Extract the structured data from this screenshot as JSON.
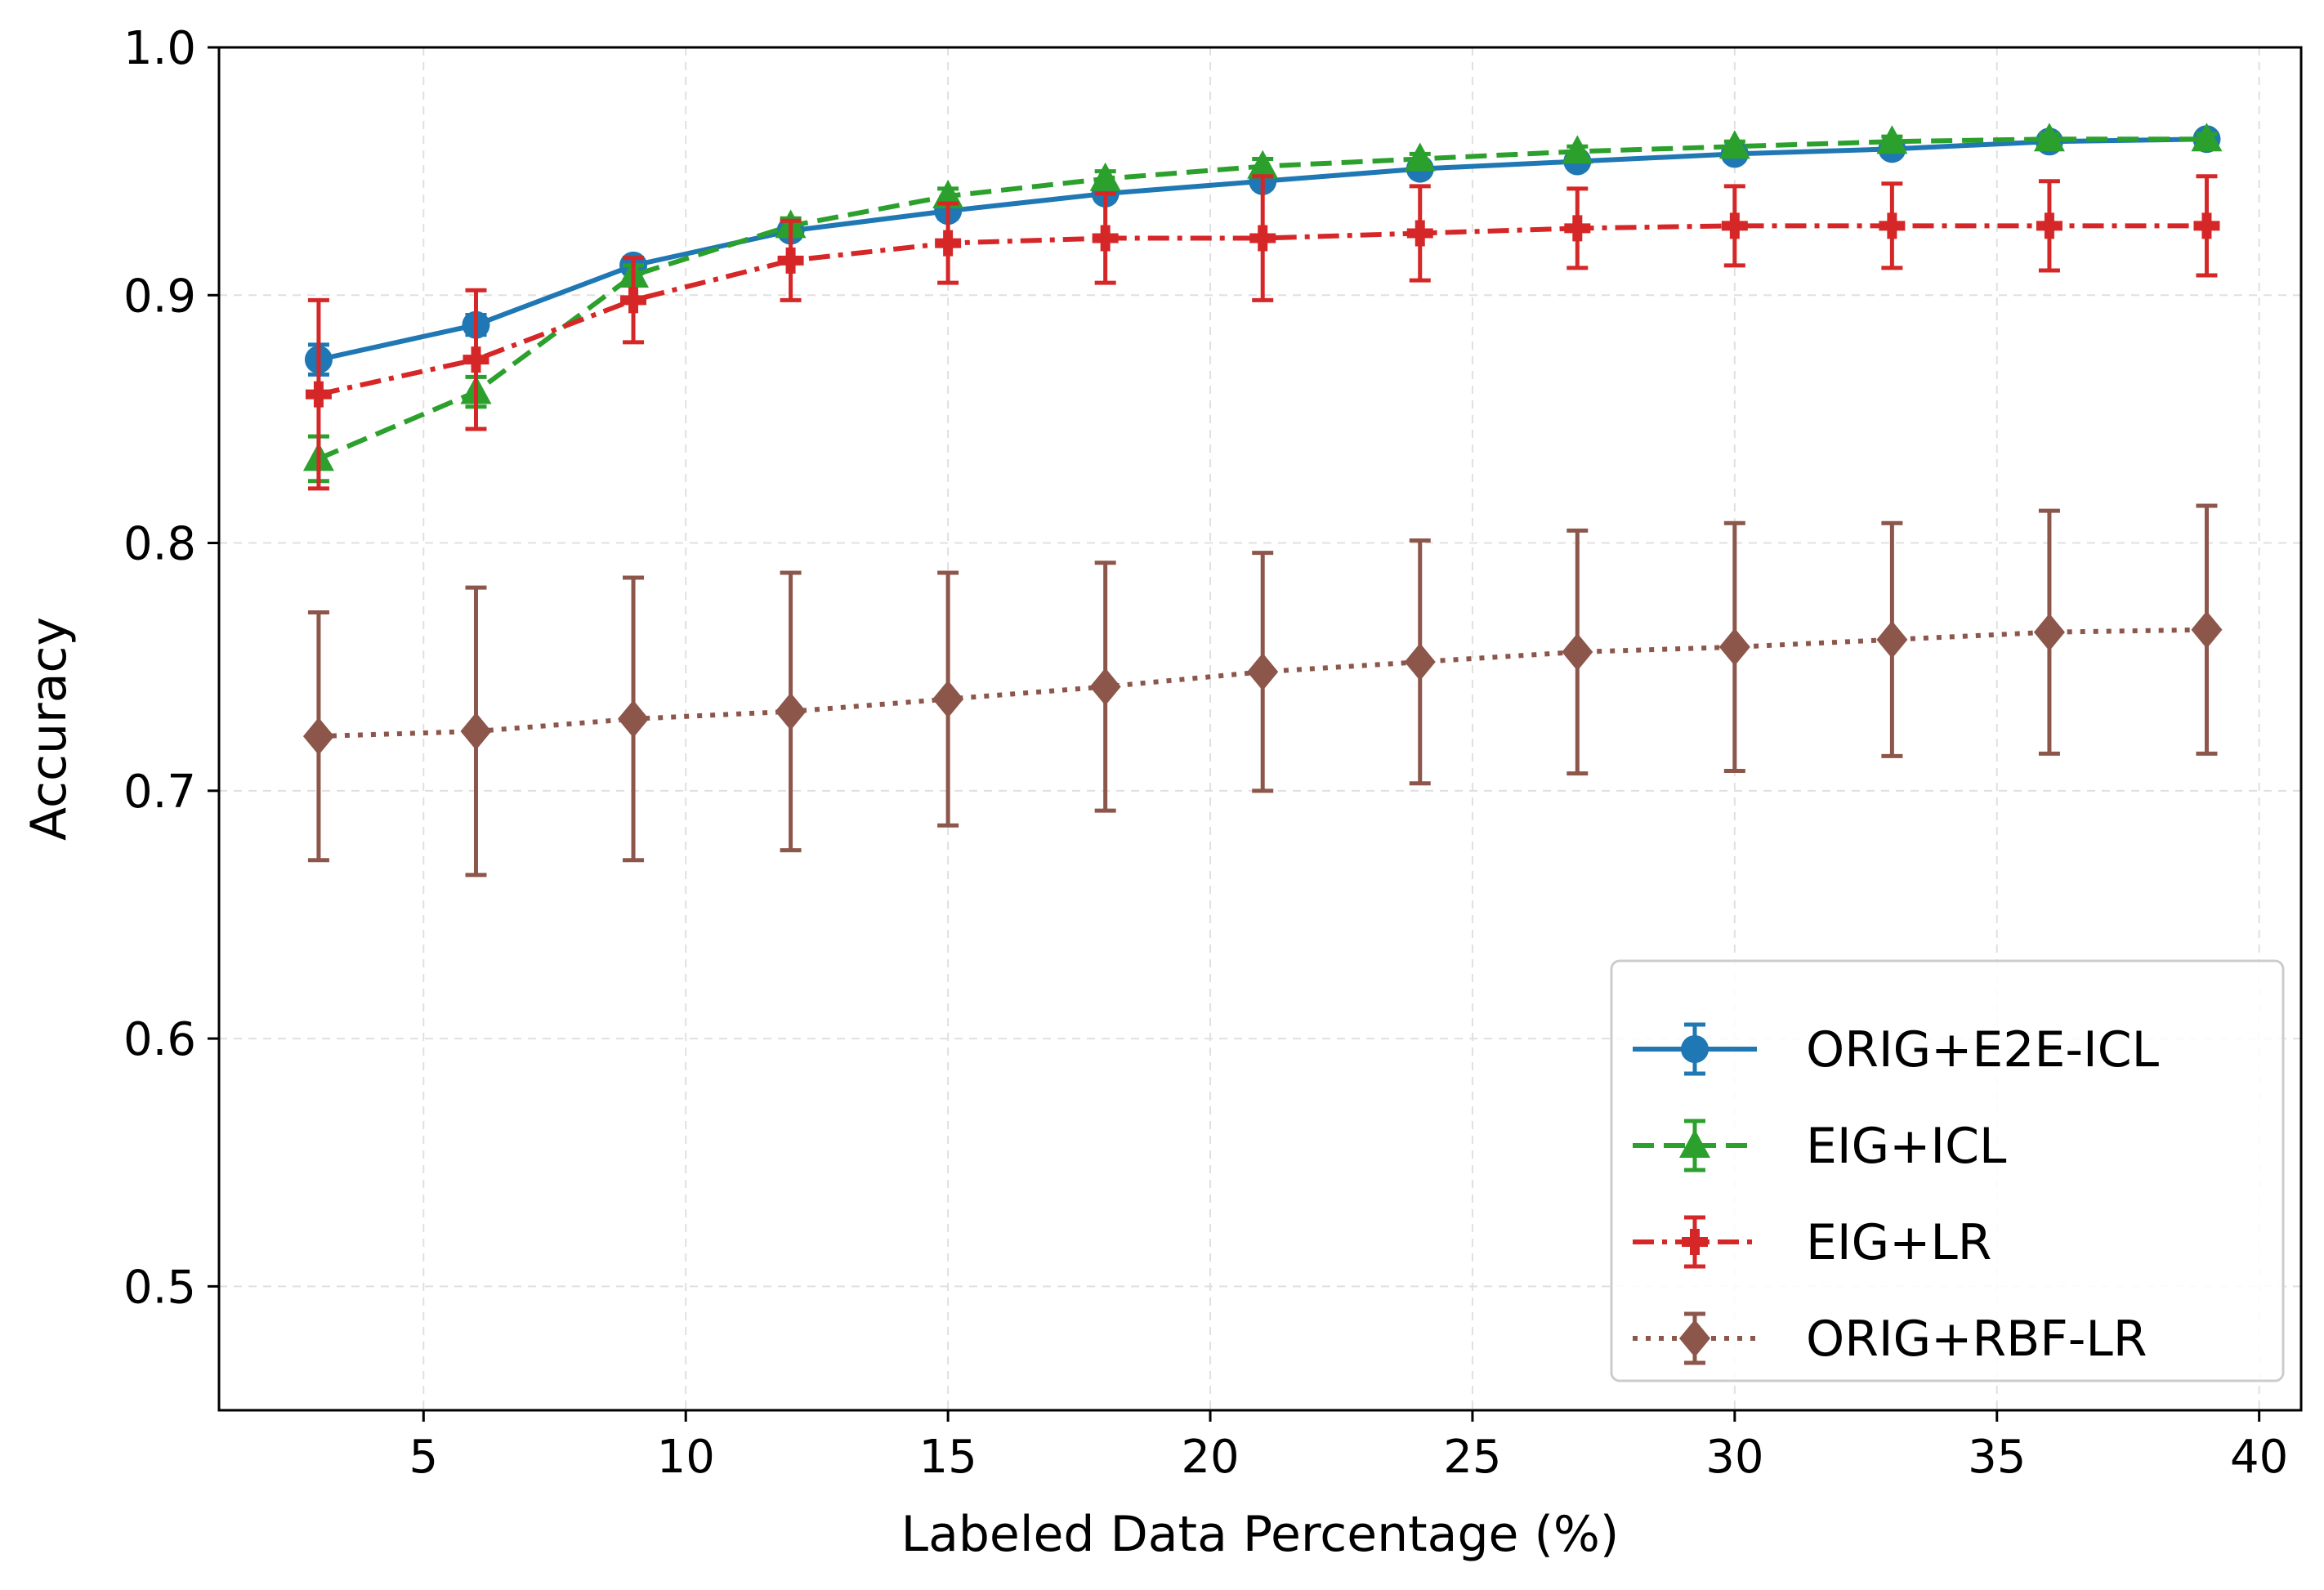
{
  "chart_data": {
    "type": "line",
    "xlabel": "Labeled Data Percentage (%)",
    "ylabel": "Accuracy",
    "xlim": [
      1.1,
      40.8
    ],
    "ylim": [
      0.45,
      1.0
    ],
    "x": [
      3,
      6,
      9,
      12,
      15,
      18,
      21,
      24,
      27,
      30,
      33,
      36,
      39
    ],
    "xticks": [
      5,
      10,
      15,
      20,
      25,
      30,
      35,
      40
    ],
    "yticks": [
      0.5,
      0.6,
      0.7,
      0.8,
      0.9,
      1.0
    ],
    "xtick_labels": [
      "5",
      "10",
      "15",
      "20",
      "25",
      "30",
      "35",
      "40"
    ],
    "ytick_labels": [
      "0.5",
      "0.6",
      "0.7",
      "0.8",
      "0.9",
      "1.0"
    ],
    "grid": true,
    "legend_position": "bottom-right",
    "series": [
      {
        "name": "ORIG+E2E-ICL",
        "color": "#1f77b4",
        "dash": "solid",
        "marker": "circle",
        "values": [
          0.874,
          0.888,
          0.912,
          0.926,
          0.934,
          0.941,
          0.946,
          0.951,
          0.954,
          0.957,
          0.959,
          0.962,
          0.963
        ],
        "errors": [
          0.006,
          0.004,
          0.003,
          0.003,
          0.003,
          0.003,
          0.003,
          0.002,
          0.002,
          0.002,
          0.002,
          0.002,
          0.002
        ]
      },
      {
        "name": "EIG+ICL",
        "color": "#2ca02c",
        "dash": "dashed",
        "marker": "triangle",
        "values": [
          0.834,
          0.861,
          0.908,
          0.928,
          0.94,
          0.947,
          0.952,
          0.955,
          0.958,
          0.96,
          0.962,
          0.963,
          0.963
        ],
        "errors": [
          0.009,
          0.006,
          0.004,
          0.003,
          0.003,
          0.003,
          0.003,
          0.002,
          0.002,
          0.002,
          0.002,
          0.002,
          0.002
        ]
      },
      {
        "name": "EIG+LR",
        "color": "#d62728",
        "dash": "dashdot",
        "marker": "plus",
        "values": [
          0.86,
          0.874,
          0.898,
          0.914,
          0.921,
          0.923,
          0.923,
          0.925,
          0.927,
          0.928,
          0.928,
          0.928,
          0.928
        ],
        "errors": [
          0.038,
          0.028,
          0.017,
          0.016,
          0.016,
          0.018,
          0.025,
          0.019,
          0.016,
          0.016,
          0.017,
          0.018,
          0.02
        ]
      },
      {
        "name": "ORIG+RBF-LR",
        "color": "#8c564b",
        "dash": "dotted",
        "marker": "diamond",
        "values": [
          0.722,
          0.724,
          0.729,
          0.732,
          0.737,
          0.742,
          0.748,
          0.752,
          0.756,
          0.758,
          0.761,
          0.764,
          0.765
        ],
        "errors": [
          0.05,
          0.058,
          0.057,
          0.056,
          0.051,
          0.05,
          0.048,
          0.049,
          0.049,
          0.05,
          0.047,
          0.049,
          0.05
        ]
      }
    ]
  }
}
